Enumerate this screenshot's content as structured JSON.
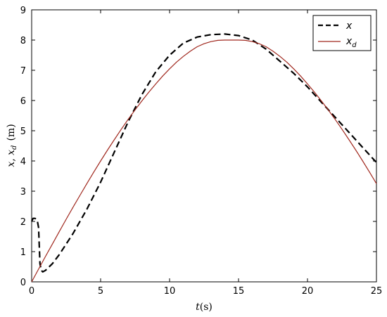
{
  "chart_data": {
    "type": "line",
    "xlabel": "t(s)",
    "ylabel": "x, x_d  (m)",
    "ylabel_parts": {
      "x": "x",
      "sep": ", ",
      "xd": "x",
      "sub": "d",
      "unit": "(m)"
    },
    "xlabel_parts": {
      "t": "t",
      "unit": "(s)"
    },
    "xlim": [
      0,
      25
    ],
    "ylim": [
      0,
      9
    ],
    "xticks": [
      0,
      5,
      10,
      15,
      20,
      25
    ],
    "yticks": [
      0,
      1,
      2,
      3,
      4,
      5,
      6,
      7,
      8,
      9
    ],
    "grid": false,
    "legend_position": "top-right",
    "legend": [
      {
        "label": "x",
        "sub": "",
        "color": "#000000",
        "style": "dashed"
      },
      {
        "label": "x",
        "sub": "d",
        "color": "#a0281e",
        "style": "solid"
      }
    ],
    "series": [
      {
        "name": "x",
        "color": "#000000",
        "style": "dashed",
        "x": [
          0,
          0.1,
          0.25,
          0.4,
          0.5,
          0.55,
          0.6,
          0.7,
          0.8,
          1.0,
          1.5,
          2,
          3,
          4,
          5,
          6,
          7,
          8,
          9,
          10,
          11,
          12,
          13,
          14,
          15,
          16,
          17,
          18,
          19,
          20,
          21,
          22,
          23,
          24,
          25
        ],
        "y": [
          2.0,
          2.1,
          2.1,
          2.05,
          1.8,
          1.2,
          0.6,
          0.38,
          0.33,
          0.38,
          0.6,
          0.9,
          1.6,
          2.4,
          3.3,
          4.3,
          5.3,
          6.2,
          6.95,
          7.5,
          7.9,
          8.1,
          8.18,
          8.2,
          8.15,
          8.0,
          7.7,
          7.3,
          6.9,
          6.45,
          5.95,
          5.45,
          4.95,
          4.45,
          3.95
        ]
      },
      {
        "name": "x_d",
        "color": "#a0281e",
        "style": "solid",
        "x": [
          0,
          0.5,
          1,
          1.5,
          2,
          2.5,
          3,
          3.5,
          4,
          4.5,
          5,
          5.5,
          6,
          6.5,
          7,
          7.5,
          8,
          8.5,
          9,
          9.5,
          10,
          10.5,
          11,
          11.5,
          12,
          12.5,
          13,
          13.5,
          14,
          14.5,
          15,
          15.5,
          16,
          16.5,
          17,
          17.5,
          18,
          18.5,
          19,
          19.5,
          20,
          20.5,
          21,
          21.5,
          22,
          22.5,
          23,
          23.5,
          24,
          24.5,
          25
        ],
        "y": [
          0,
          0.42,
          0.84,
          1.25,
          1.66,
          2.07,
          2.47,
          2.86,
          3.25,
          3.63,
          4.0,
          4.36,
          4.71,
          5.05,
          5.38,
          5.69,
          5.99,
          6.28,
          6.55,
          6.81,
          7.05,
          7.27,
          7.46,
          7.63,
          7.78,
          7.88,
          7.95,
          7.99,
          8.0,
          8.0,
          8.0,
          7.99,
          7.95,
          7.88,
          7.78,
          7.63,
          7.46,
          7.27,
          7.05,
          6.81,
          6.55,
          6.28,
          5.99,
          5.69,
          5.38,
          5.05,
          4.71,
          4.36,
          4.0,
          3.63,
          3.25
        ]
      }
    ]
  }
}
